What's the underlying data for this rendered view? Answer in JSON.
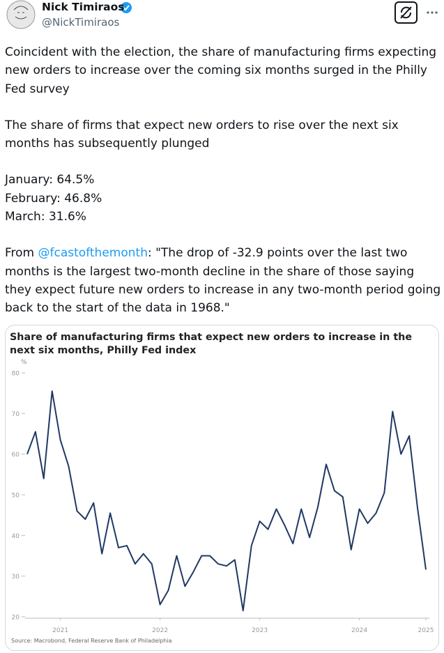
{
  "author": {
    "name": "Nick Timiraos",
    "handle": "@NickTimiraos"
  },
  "body": {
    "p1": "Coincident with the election, the share of manufacturing firms expecting new orders to increase over the coming six months surged in the Philly Fed survey",
    "p2": "The share of firms that expect new orders to rise over the next six months has subsequently plunged",
    "months": [
      "January: 64.5%",
      "February: 46.8%",
      "March: 31.6%"
    ],
    "p4": {
      "lead": "From",
      "mention": "@fcastofthemonth",
      "rest": ": \"The drop of -32.9 points over the last two months is the largest two-month decline in the share of those saying they expect future new orders to increase in any two-month period going back to the start of the data in 1968.\""
    }
  },
  "chart_data": {
    "type": "line",
    "title": "Share of manufacturing firms that expect new orders to increase in the next six months, Philly Fed index",
    "ylabel": "%",
    "source": "Source: Macrobond, Federal Reserve Bank of Philadelphia",
    "color": "#1f3864",
    "x": [
      2021.167,
      2021.25,
      2021.333,
      2021.417,
      2021.5,
      2021.583,
      2021.667,
      2021.75,
      2021.833,
      2021.917,
      2022,
      2022.083,
      2022.167,
      2022.25,
      2022.333,
      2022.417,
      2022.5,
      2022.583,
      2022.667,
      2022.75,
      2022.833,
      2022.917,
      2023,
      2023.083,
      2023.167,
      2023.25,
      2023.333,
      2023.417,
      2023.5,
      2023.583,
      2023.667,
      2023.75,
      2023.833,
      2023.917,
      2024,
      2024.083,
      2024.167,
      2024.25,
      2024.333,
      2024.417,
      2024.5,
      2024.583,
      2024.667,
      2024.75,
      2024.833,
      2024.917,
      2025,
      2025.083,
      2025.167
    ],
    "values": [
      60,
      65.5,
      54,
      75.5,
      63.5,
      57,
      46,
      44,
      48,
      35.5,
      45.5,
      37,
      37.5,
      33,
      35.5,
      33,
      23,
      26.5,
      35,
      27.5,
      31,
      35,
      35,
      33,
      32.5,
      34,
      21.5,
      37.5,
      43.5,
      41.5,
      46.5,
      42.5,
      38,
      46.5,
      39.5,
      47,
      57.5,
      51,
      49.5,
      36.5,
      46.5,
      43,
      45.5,
      50.5,
      70.5,
      60,
      64.5,
      46.8,
      31.6
    ],
    "xlim": [
      2021.167,
      2025.167
    ],
    "xticks": [
      {
        "value": 2021.5,
        "label": "2021"
      },
      {
        "value": 2022.5,
        "label": "2022"
      },
      {
        "value": 2023.5,
        "label": "2023"
      },
      {
        "value": 2024.5,
        "label": "2024"
      },
      {
        "value": 2025.5,
        "label": "2025"
      }
    ],
    "ylim": [
      20,
      80
    ],
    "yticks": [
      20,
      30,
      40,
      50,
      60,
      70,
      80
    ]
  }
}
